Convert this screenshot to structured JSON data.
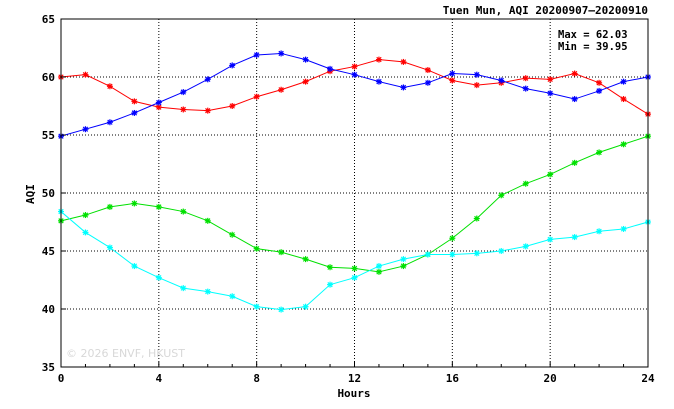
{
  "chart_data": {
    "type": "line",
    "title": "Tuen Mun, AQI 20200907–20200910",
    "xlabel": "Hours",
    "ylabel": "AQI",
    "xlim": [
      0,
      24
    ],
    "ylim": [
      35,
      65
    ],
    "xticks": [
      0,
      4,
      8,
      12,
      16,
      20,
      24
    ],
    "yticks": [
      35,
      40,
      45,
      50,
      55,
      60,
      65
    ],
    "grid": true,
    "stats": {
      "max_label": "Max = 62.03",
      "min_label": "Min = 39.95"
    },
    "watermark": "© 2026  ENVF, HKUST",
    "x": [
      0,
      1,
      2,
      3,
      4,
      5,
      6,
      7,
      8,
      9,
      10,
      11,
      12,
      13,
      14,
      15,
      16,
      17,
      18,
      19,
      20,
      21,
      22,
      23,
      24
    ],
    "series": [
      {
        "color": "#ff0000",
        "values": [
          60.0,
          60.2,
          59.2,
          57.9,
          57.4,
          57.2,
          57.1,
          57.5,
          58.3,
          58.9,
          59.6,
          60.5,
          60.9,
          61.5,
          61.3,
          60.6,
          59.7,
          59.3,
          59.5,
          59.9,
          59.8,
          60.3,
          59.5,
          58.1,
          56.8
        ]
      },
      {
        "color": "#0000ff",
        "values": [
          54.9,
          55.5,
          56.1,
          56.9,
          57.8,
          58.7,
          59.8,
          61.0,
          61.9,
          62.03,
          61.5,
          60.7,
          60.2,
          59.6,
          59.1,
          59.5,
          60.3,
          60.2,
          59.7,
          59.0,
          58.6,
          58.1,
          58.8,
          59.6,
          60.0
        ]
      },
      {
        "color": "#00e000",
        "values": [
          47.6,
          48.1,
          48.8,
          49.1,
          48.8,
          48.4,
          47.6,
          46.4,
          45.2,
          44.9,
          44.3,
          43.6,
          43.5,
          43.2,
          43.7,
          44.7,
          46.1,
          47.8,
          49.8,
          50.8,
          51.6,
          52.6,
          53.5,
          54.2,
          54.9
        ]
      },
      {
        "color": "#00ffff",
        "values": [
          48.4,
          46.6,
          45.3,
          43.7,
          42.7,
          41.8,
          41.5,
          41.1,
          40.2,
          39.95,
          40.2,
          42.1,
          42.7,
          43.7,
          44.3,
          44.7,
          44.7,
          44.8,
          45.0,
          45.4,
          46.0,
          46.2,
          46.7,
          46.9,
          47.5
        ]
      }
    ]
  }
}
